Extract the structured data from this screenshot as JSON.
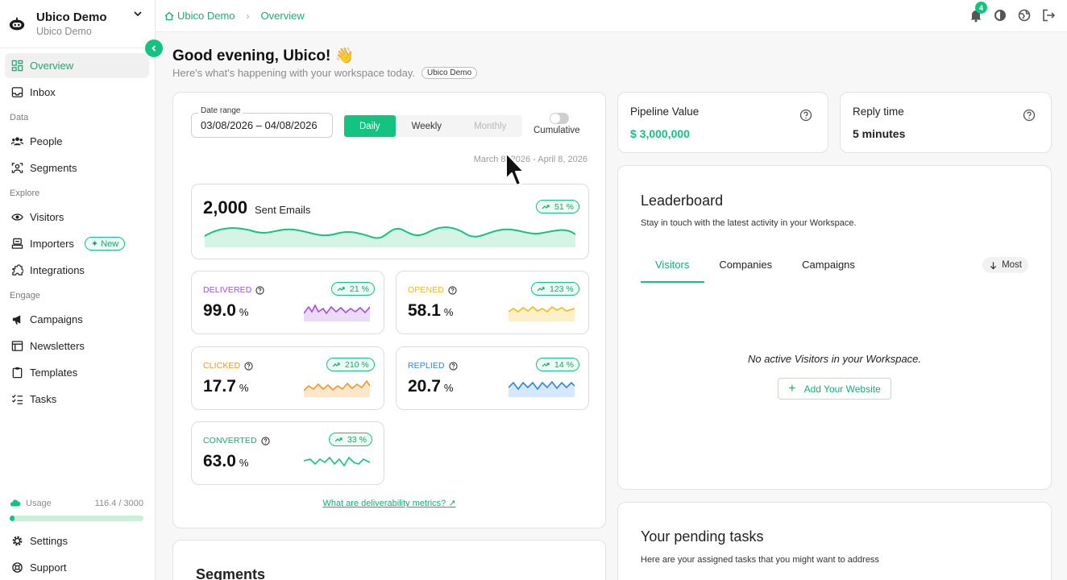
{
  "workspace": {
    "name": "Ubico Demo",
    "subtitle": "Ubico Demo"
  },
  "nav": {
    "overview": "Overview",
    "inbox": "Inbox",
    "section_data": "Data",
    "people": "People",
    "segments": "Segments",
    "section_explore": "Explore",
    "visitors": "Visitors",
    "importers": "Importers",
    "importers_badge": "New",
    "integrations": "Integrations",
    "section_engage": "Engage",
    "campaigns": "Campaigns",
    "newsletters": "Newsletters",
    "templates": "Templates",
    "tasks": "Tasks"
  },
  "usage": {
    "label": "Usage",
    "value_text": "116.4 / 3000",
    "fraction": 0.0388
  },
  "bottom_nav": {
    "settings": "Settings",
    "support": "Support"
  },
  "header": {
    "breadcrumb_home": "Ubico Demo",
    "breadcrumb_current": "Overview",
    "notification_count": "4",
    "icons": [
      "bell-icon",
      "theme-icon",
      "globe-icon",
      "logout-icon"
    ]
  },
  "greeting": {
    "title": "Good evening, Ubico! 👋",
    "subtitle": "Here's what's happening with your workspace today.",
    "workspace_pill": "Ubico Demo"
  },
  "metrics": {
    "date_label": "Date range",
    "date_value": "03/08/2026 – 04/08/2026",
    "periods": [
      "Daily",
      "Weekly",
      "Monthly"
    ],
    "active_period": "Daily",
    "cumulative_label": "Cumulative",
    "cumulative_on": false,
    "range_text": "March 8, 2026 - April 8, 2026",
    "sent": {
      "value": "2,000",
      "label": "Sent Emails",
      "trend": "51 %",
      "color": "#13c37f"
    },
    "delivered": {
      "title": "DELIVERED",
      "value": "99.0",
      "unit": "%",
      "trend": "21 %",
      "color": "#a64ddb"
    },
    "opened": {
      "title": "OPENED",
      "value": "58.1",
      "unit": "%",
      "trend": "123 %",
      "color": "#f2b814"
    },
    "clicked": {
      "title": "CLICKED",
      "value": "17.7",
      "unit": "%",
      "trend": "210 %",
      "color": "#f0962a"
    },
    "replied": {
      "title": "REPLIED",
      "value": "20.7",
      "unit": "%",
      "trend": "14 %",
      "color": "#2a86e6"
    },
    "converted": {
      "title": "CONVERTED",
      "value": "63.0",
      "unit": "%",
      "trend": "33 %",
      "color": "#13c37f"
    },
    "deliverability_link": "What are deliverability metrics?"
  },
  "segments_card": {
    "title": "Segments"
  },
  "pipeline": {
    "label": "Pipeline Value",
    "value": "$ 3,000,000",
    "color": "#13c37f"
  },
  "reply_time": {
    "label": "Reply time",
    "value": "5 minutes"
  },
  "leaderboard": {
    "title": "Leaderboard",
    "subtitle": "Stay in touch with the latest activity in your Workspace.",
    "tabs": [
      "Visitors",
      "Companies",
      "Campaigns"
    ],
    "active_tab": "Visitors",
    "sort_label": "Most",
    "empty_text": "No active Visitors in your Workspace.",
    "add_button": "Add Your Website"
  },
  "tasks": {
    "title": "Your pending tasks",
    "subtitle": "Here are your assigned tasks that you might want to address"
  },
  "colors": {
    "accent": "#13c37f",
    "accent_dark": "#13b070"
  }
}
